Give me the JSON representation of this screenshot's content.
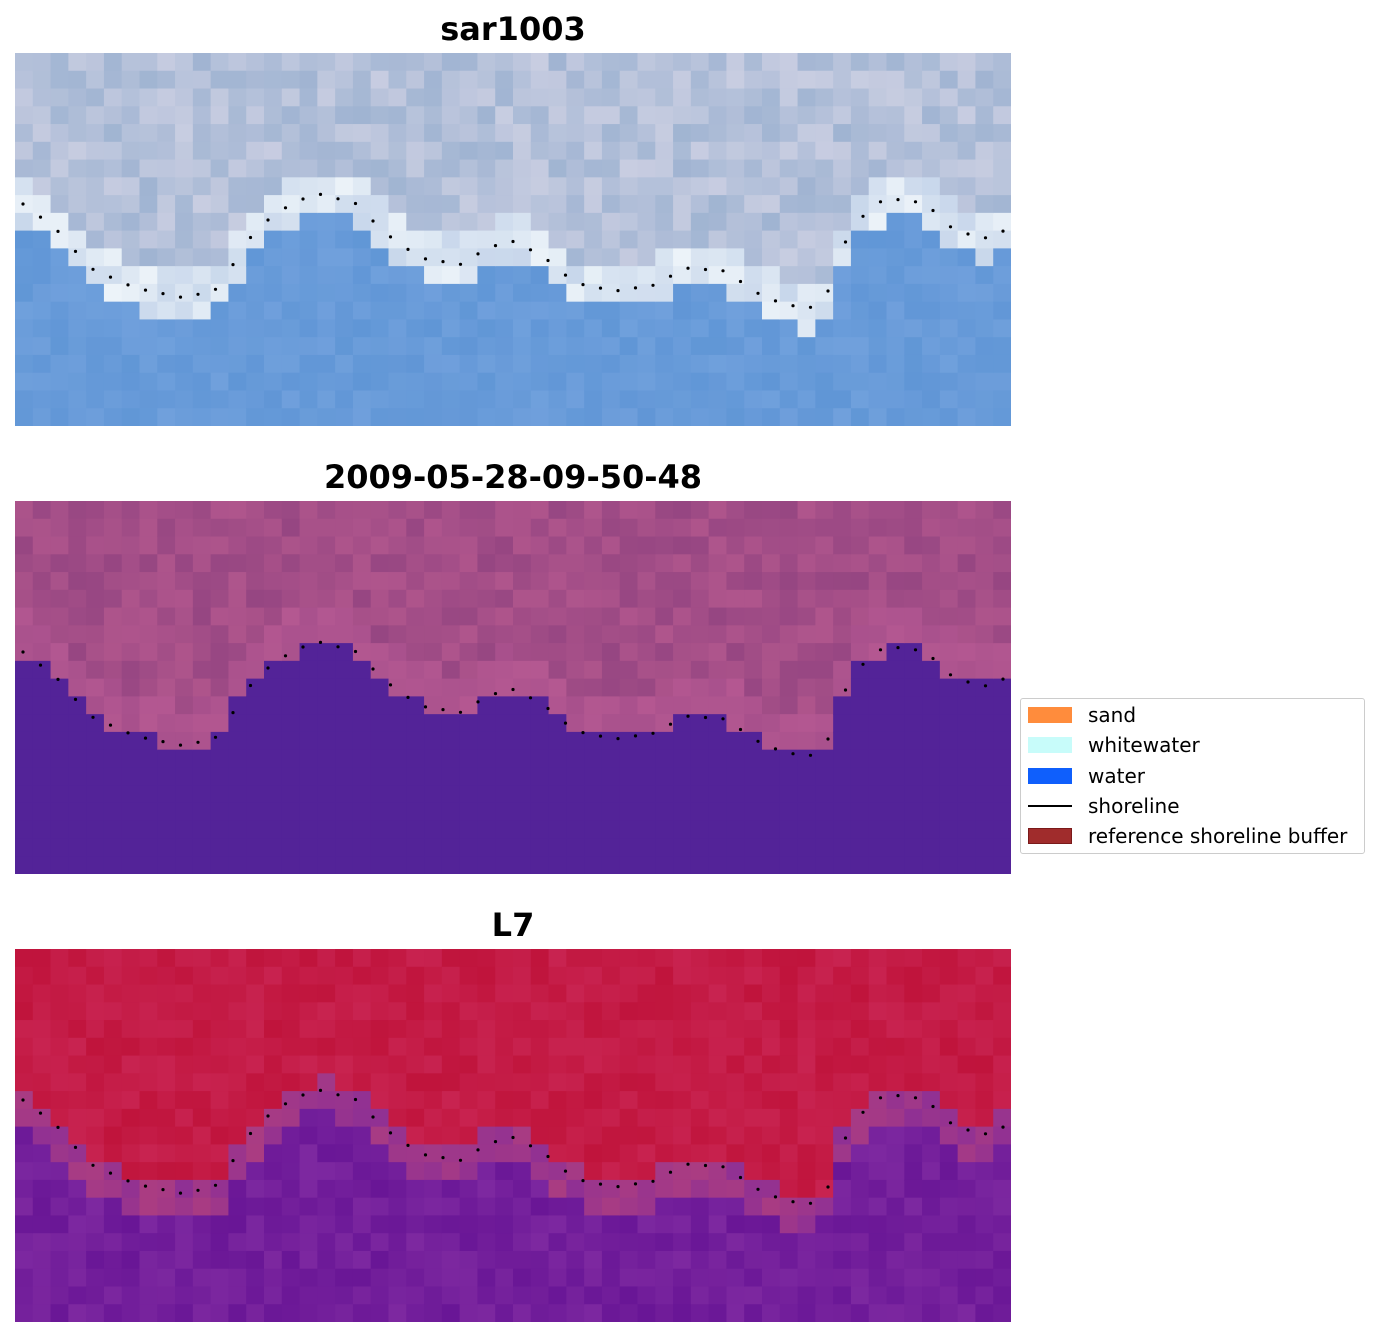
{
  "panels": [
    {
      "title": "sar1003",
      "kind": "rgb"
    },
    {
      "title": "2009-05-28-09-50-48",
      "kind": "classified"
    },
    {
      "title": "L7",
      "kind": "index"
    }
  ],
  "legend": {
    "items": [
      {
        "label": "sand",
        "color": "#ff8c3c",
        "kind": "patch"
      },
      {
        "label": "whitewater",
        "color": "#c8fcfa",
        "kind": "patch"
      },
      {
        "label": "water",
        "color": "#0f5ffc",
        "kind": "patch"
      },
      {
        "label": "shoreline",
        "color": "#000000",
        "kind": "line"
      },
      {
        "label": "reference shoreline buffer",
        "color": "#a02c2c",
        "kind": "patch"
      }
    ]
  },
  "colors": {
    "water_rgb": "#6a9fd6",
    "sand_rgb": "#a9bdd6",
    "classified_land": "#9e4a86",
    "classified_water": "#532398",
    "index_land": "#c0143c",
    "index_water": "#6d1798"
  }
}
